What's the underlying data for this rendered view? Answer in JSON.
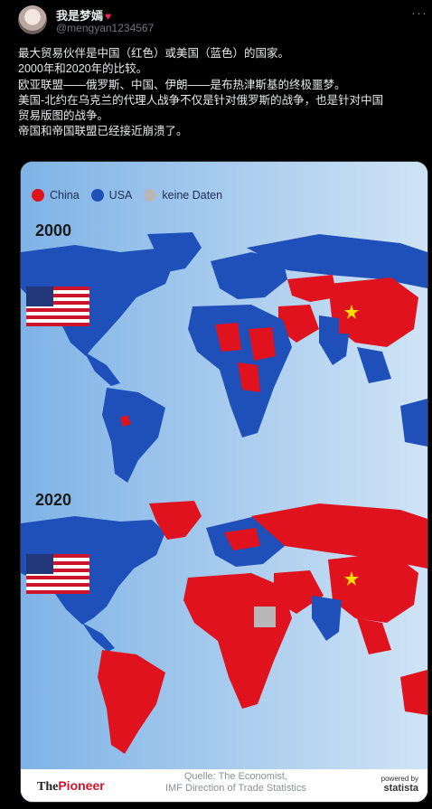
{
  "post": {
    "author_name": "我是梦嫣",
    "author_handle": "@mengyan1234567",
    "more_label": "···",
    "lines": [
      "最大贸易伙伴是中国（红色）或美国（蓝色）的国家。",
      "2000年和2020年的比较。",
      "欧亚联盟——俄罗斯、中国、伊朗——是布热津斯基的终极噩梦。",
      "美国-北约在乌克兰的代理人战争不仅是针对俄罗斯的战争，也是针对中国",
      "贸易版图的战争。",
      "帝国和帝国联盟已经接近崩溃了。"
    ]
  },
  "card": {
    "legend": [
      {
        "label": "China",
        "color": "#e0121d"
      },
      {
        "label": "USA",
        "color": "#1f4fb8"
      },
      {
        "label": "keine Daten",
        "color": "#b8b8b8"
      }
    ],
    "year_top": "2000",
    "year_bottom": "2020",
    "brand_a": "The",
    "brand_b": "Pioneer",
    "source_line1": "Quelle: The Economist,",
    "source_line2": "IMF Direction of Trade Statistics",
    "statista_small": "powered by",
    "statista_big": "statista"
  }
}
